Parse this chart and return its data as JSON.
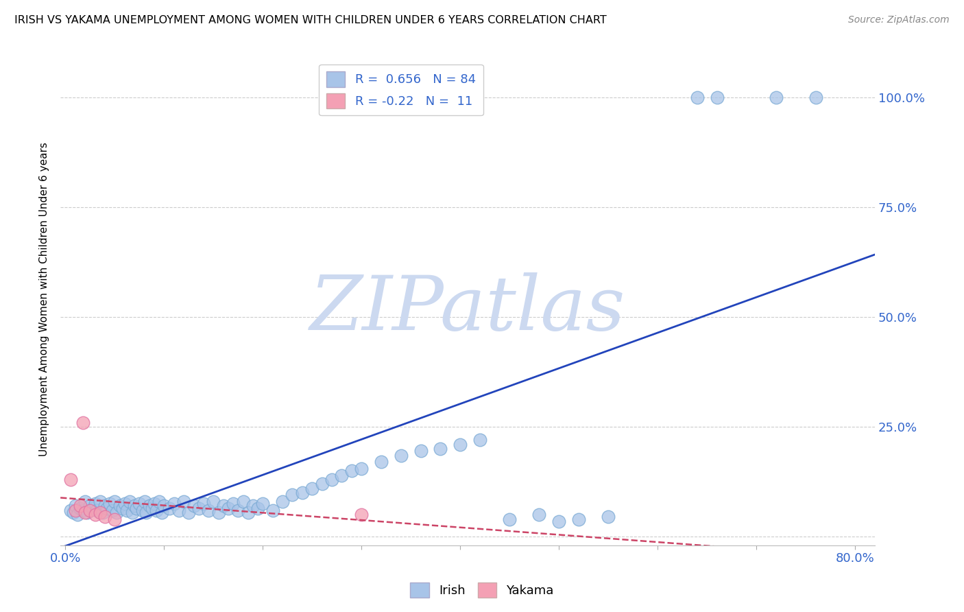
{
  "title": "IRISH VS YAKAMA UNEMPLOYMENT AMONG WOMEN WITH CHILDREN UNDER 6 YEARS CORRELATION CHART",
  "source": "Source: ZipAtlas.com",
  "ylabel": "Unemployment Among Women with Children Under 6 years",
  "watermark": "ZIPatlas",
  "watermark_color": "#ccd9f0",
  "irish_R": 0.656,
  "irish_N": 84,
  "yakama_R": -0.22,
  "yakama_N": 11,
  "irish_color": "#a8c4e8",
  "irish_edge_color": "#7aaad4",
  "yakama_color": "#f4a0b4",
  "yakama_edge_color": "#e070a0",
  "irish_line_color": "#2244bb",
  "yakama_line_color": "#cc4466",
  "legend_irish_label": "Irish",
  "legend_yakama_label": "Yakama",
  "irish_x": [
    0.005,
    0.008,
    0.01,
    0.012,
    0.015,
    0.018,
    0.02,
    0.022,
    0.025,
    0.028,
    0.03,
    0.032,
    0.035,
    0.038,
    0.04,
    0.042,
    0.045,
    0.048,
    0.05,
    0.052,
    0.055,
    0.058,
    0.06,
    0.062,
    0.065,
    0.068,
    0.07,
    0.072,
    0.075,
    0.078,
    0.08,
    0.082,
    0.085,
    0.088,
    0.09,
    0.092,
    0.095,
    0.098,
    0.1,
    0.105,
    0.11,
    0.115,
    0.12,
    0.125,
    0.13,
    0.135,
    0.14,
    0.145,
    0.15,
    0.155,
    0.16,
    0.165,
    0.17,
    0.175,
    0.18,
    0.185,
    0.19,
    0.195,
    0.2,
    0.21,
    0.22,
    0.23,
    0.24,
    0.25,
    0.26,
    0.27,
    0.28,
    0.29,
    0.3,
    0.32,
    0.34,
    0.36,
    0.38,
    0.4,
    0.42,
    0.45,
    0.48,
    0.5,
    0.52,
    0.55,
    0.64,
    0.66,
    0.72,
    0.76
  ],
  "irish_y": [
    0.06,
    0.055,
    0.07,
    0.05,
    0.065,
    0.06,
    0.08,
    0.055,
    0.07,
    0.065,
    0.075,
    0.06,
    0.08,
    0.055,
    0.07,
    0.065,
    0.075,
    0.06,
    0.08,
    0.055,
    0.07,
    0.065,
    0.075,
    0.06,
    0.08,
    0.055,
    0.07,
    0.065,
    0.075,
    0.06,
    0.08,
    0.055,
    0.07,
    0.065,
    0.075,
    0.06,
    0.08,
    0.055,
    0.07,
    0.065,
    0.075,
    0.06,
    0.08,
    0.055,
    0.07,
    0.065,
    0.075,
    0.06,
    0.08,
    0.055,
    0.07,
    0.065,
    0.075,
    0.06,
    0.08,
    0.055,
    0.07,
    0.065,
    0.075,
    0.06,
    0.08,
    0.095,
    0.1,
    0.11,
    0.12,
    0.13,
    0.14,
    0.15,
    0.155,
    0.17,
    0.185,
    0.195,
    0.2,
    0.21,
    0.22,
    0.04,
    0.05,
    0.035,
    0.04,
    0.045,
    1.0,
    1.0,
    1.0,
    1.0
  ],
  "yakama_x": [
    0.005,
    0.01,
    0.015,
    0.02,
    0.025,
    0.03,
    0.035,
    0.04,
    0.05,
    0.018,
    0.3
  ],
  "yakama_y": [
    0.13,
    0.06,
    0.07,
    0.055,
    0.06,
    0.05,
    0.055,
    0.045,
    0.04,
    0.26,
    0.05
  ],
  "xlim": [
    -0.005,
    0.82
  ],
  "ylim": [
    -0.02,
    1.1
  ],
  "xtick_positions": [
    0.0,
    0.1,
    0.2,
    0.3,
    0.4,
    0.5,
    0.6,
    0.7,
    0.8
  ],
  "xtick_labels": [
    "0.0%",
    "",
    "",
    "",
    "",
    "",
    "",
    "",
    "80.0%"
  ],
  "ytick_positions": [
    0.0,
    0.25,
    0.5,
    0.75,
    1.0
  ],
  "ytick_labels": [
    "",
    "25.0%",
    "50.0%",
    "75.0%",
    "100.0%"
  ],
  "tick_color": "#3366cc",
  "grid_color": "#cccccc",
  "marker_size": 180
}
